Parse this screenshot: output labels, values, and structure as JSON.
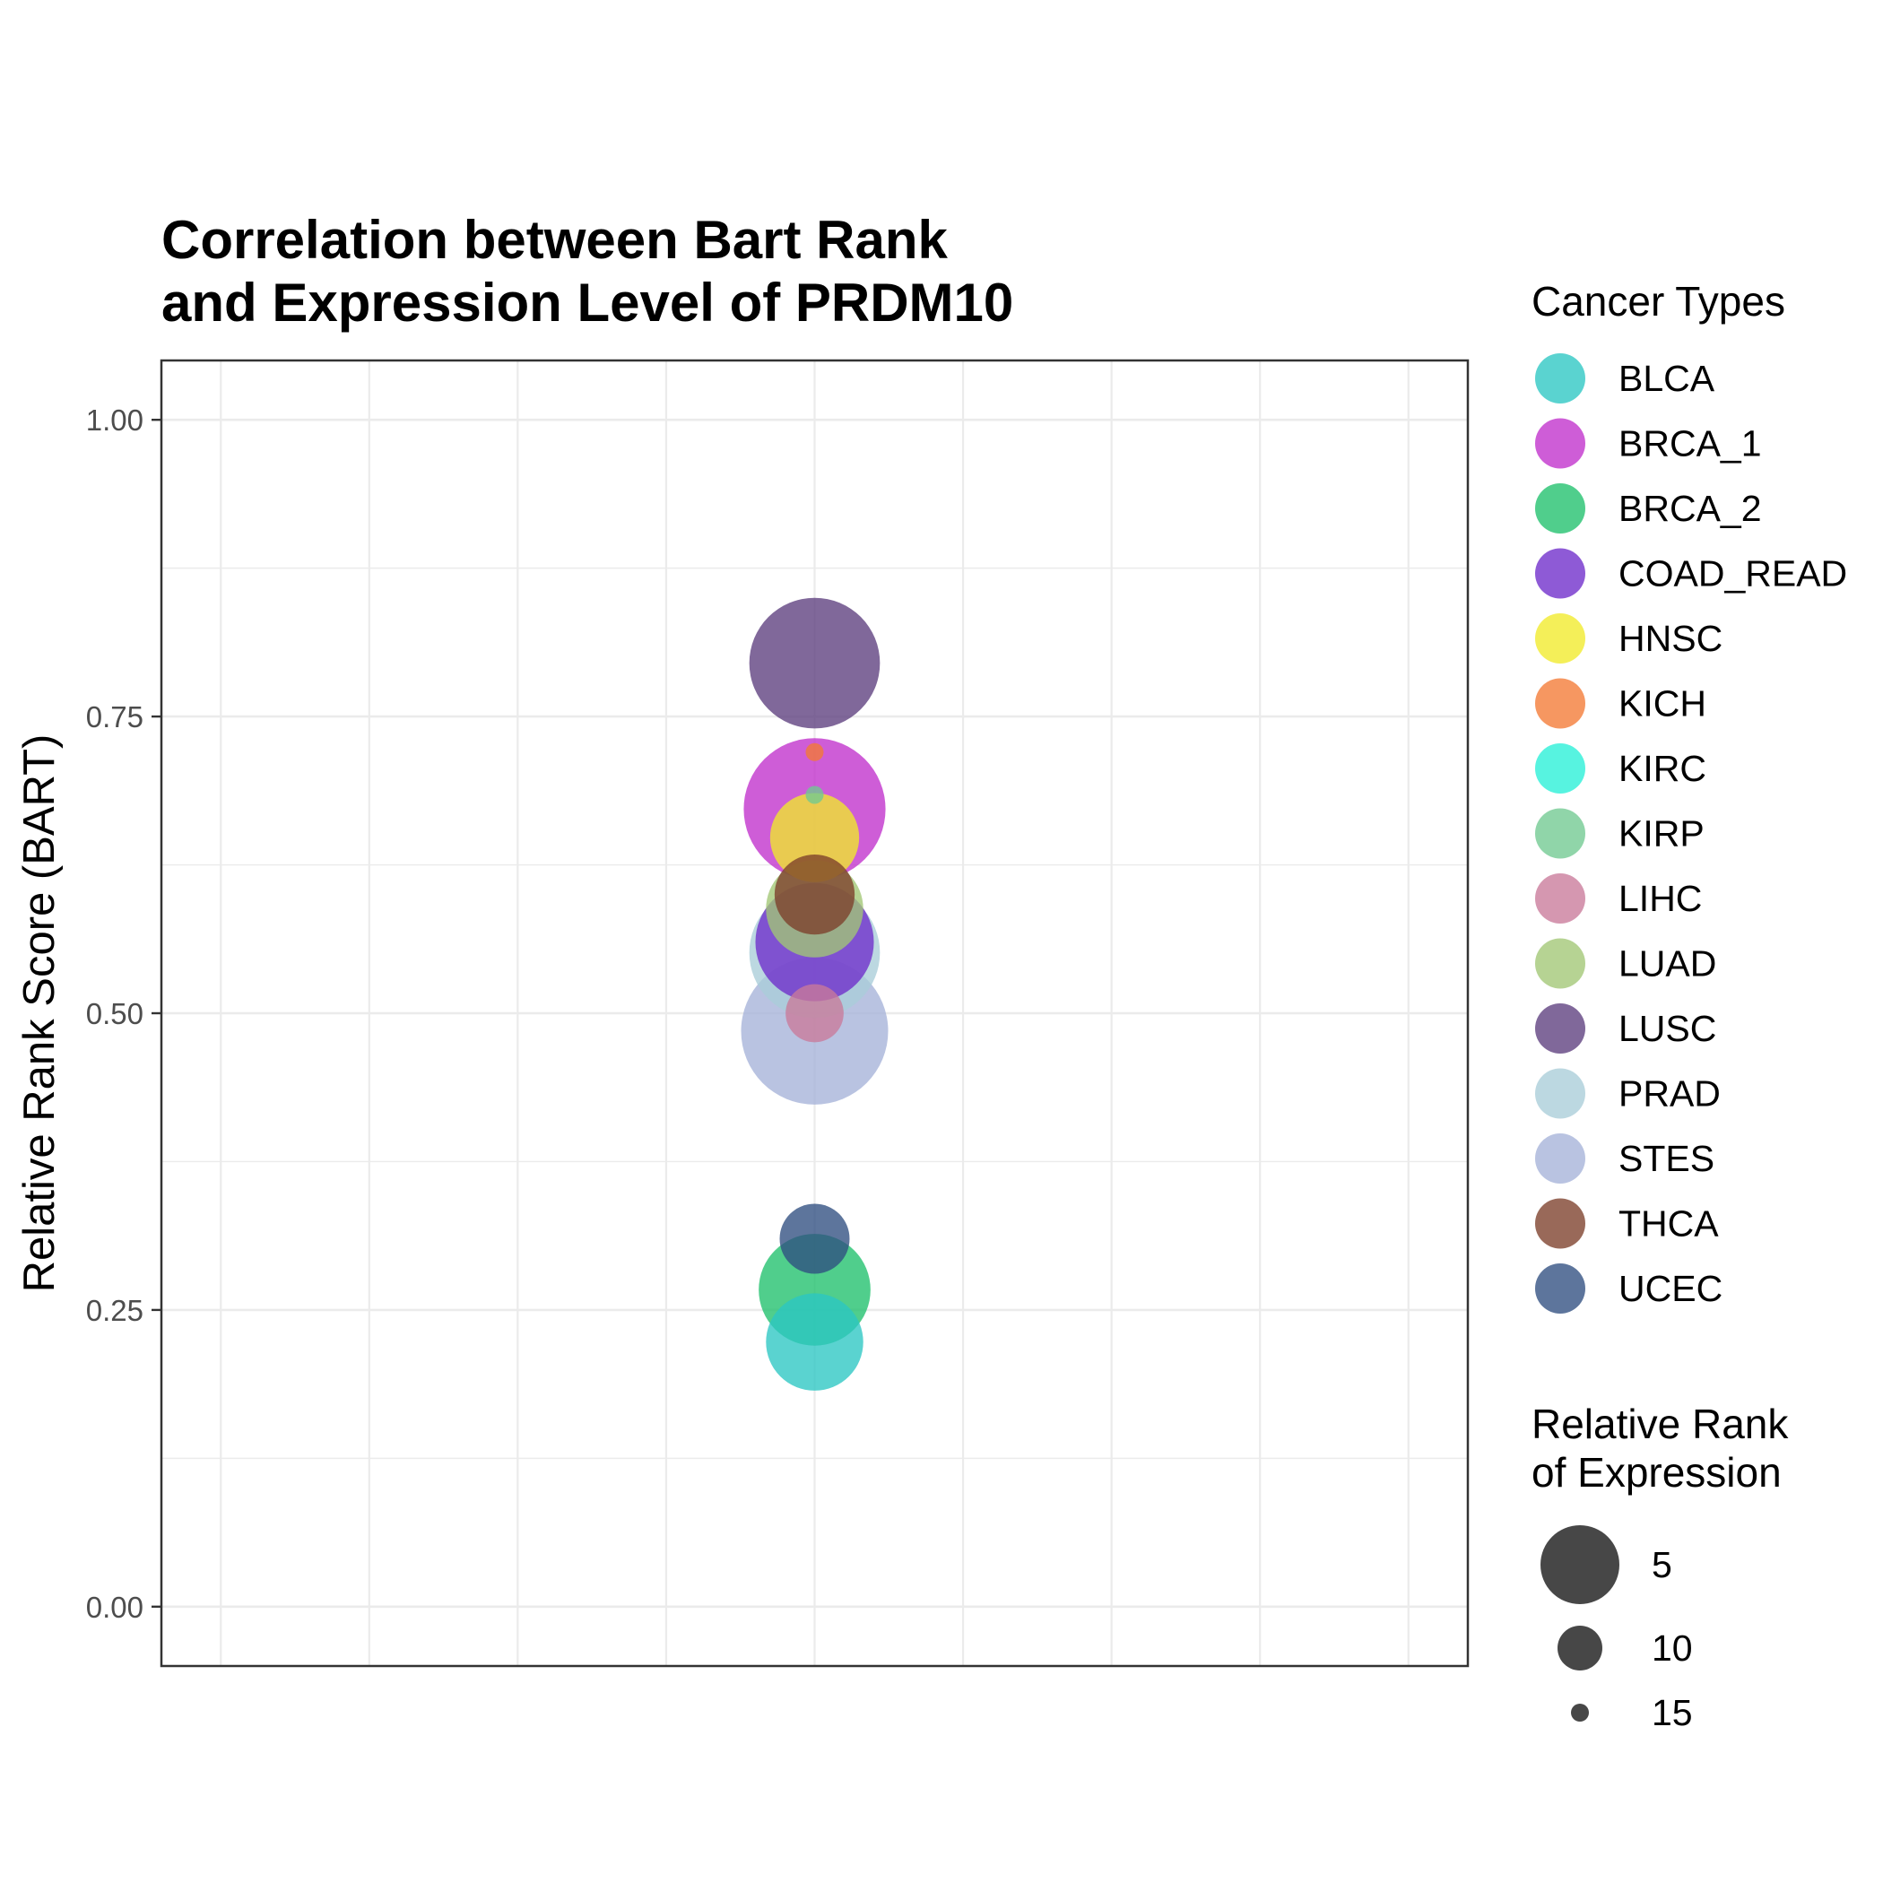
{
  "chart_data": {
    "type": "scatter",
    "title": [
      "Correlation between Bart Rank",
      "and Expression Level of PRDM10"
    ],
    "ylabel": "Relative Rank Score (BART)",
    "xlabel": "",
    "ylim": [
      -0.05,
      1.05
    ],
    "yticks": [
      "0.00",
      "0.25",
      "0.50",
      "0.75",
      "1.00"
    ],
    "ytick_values": [
      0,
      0.25,
      0.5,
      0.75,
      1.0
    ],
    "grid": true,
    "legend_position": "right",
    "color_legend": {
      "title": "Cancer Types",
      "entries": [
        "BLCA",
        "BRCA_1",
        "BRCA_2",
        "COAD_READ",
        "HNSC",
        "KICH",
        "KIRC",
        "KIRP",
        "LIHC",
        "LUAD",
        "LUSC",
        "PRAD",
        "STES",
        "THCA",
        "UCEC"
      ],
      "colors": [
        "#2CC6C3",
        "#C02FCC",
        "#1FC06C",
        "#6E2BCB",
        "#F1EB2A",
        "#F37A34",
        "#28F0D7",
        "#71C991",
        "#C97A9A",
        "#A2C774",
        "#5C3E7E",
        "#A9CDD8",
        "#A5B2D8",
        "#7C3F2A",
        "#2F4E80"
      ]
    },
    "size_legend": {
      "title": [
        "Relative Rank",
        "of Expression"
      ],
      "values": [
        "5",
        "10",
        "15"
      ]
    },
    "points": [
      {
        "cancer": "STES",
        "y": 0.485,
        "rank": 1
      },
      {
        "cancer": "BRCA_1",
        "y": 0.672,
        "rank": 2
      },
      {
        "cancer": "LUSC",
        "y": 0.795,
        "rank": 4
      },
      {
        "cancer": "PRAD",
        "y": 0.551,
        "rank": 4
      },
      {
        "cancer": "COAD_READ",
        "y": 0.56,
        "rank": 6
      },
      {
        "cancer": "BRCA_2",
        "y": 0.267,
        "rank": 7
      },
      {
        "cancer": "LUAD",
        "y": 0.588,
        "rank": 9
      },
      {
        "cancer": "BLCA",
        "y": 0.223,
        "rank": 9
      },
      {
        "cancer": "HNSC",
        "y": 0.648,
        "rank": 10
      },
      {
        "cancer": "THCA",
        "y": 0.6,
        "rank": 11
      },
      {
        "cancer": "UCEC",
        "y": 0.31,
        "rank": 12
      },
      {
        "cancer": "LIHC",
        "y": 0.5,
        "rank": 13
      },
      {
        "cancer": "KIRP",
        "y": 0.684,
        "rank": 15
      },
      {
        "cancer": "KICH",
        "y": 0.72,
        "rank": 15
      }
    ]
  }
}
